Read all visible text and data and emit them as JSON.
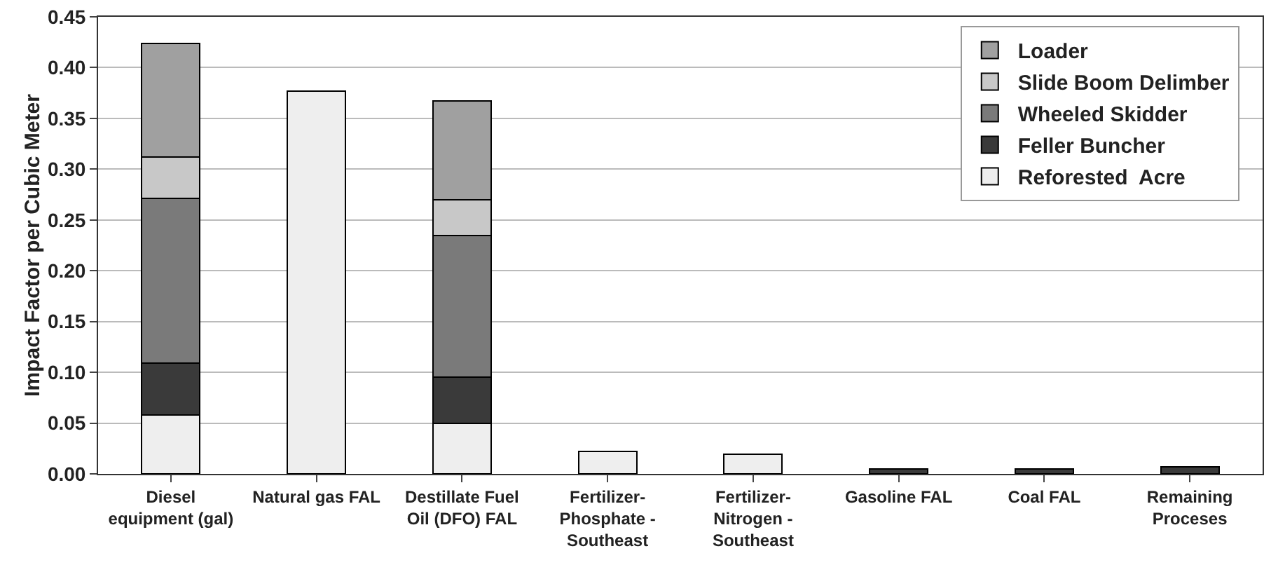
{
  "chart_data": {
    "type": "bar",
    "stacked": true,
    "ylabel": "Impact Factor per Cubic Meter",
    "categories": [
      "Diesel equipment (gal)",
      "Natural gas FAL",
      "Destillate Fuel Oil (DFO) FAL",
      "Fertilizer-Phosphate - Southeast",
      "Fertilizer-Nitrogen - Southeast",
      "Gasoline FAL",
      "Coal FAL",
      "Remaining Proceses"
    ],
    "series": [
      {
        "name": "Reforested  Acre",
        "color": "#eeeeee",
        "values": [
          0.058,
          0.377,
          0.05,
          0.022,
          0.019,
          null,
          null,
          null
        ]
      },
      {
        "name": "Feller Buncher",
        "color": "#3a3a3a",
        "values": [
          0.051,
          null,
          0.045,
          null,
          null,
          0.005,
          0.005,
          0.007
        ]
      },
      {
        "name": "Wheeled Skidder",
        "color": "#7a7a7a",
        "values": [
          0.162,
          null,
          0.14,
          null,
          null,
          null,
          null,
          null
        ]
      },
      {
        "name": "Slide Boom Delimber",
        "color": "#c8c8c8",
        "values": [
          0.041,
          null,
          0.035,
          null,
          null,
          null,
          null,
          null
        ]
      },
      {
        "name": "Loader",
        "color": "#a0a0a0",
        "values": [
          0.112,
          null,
          0.097,
          null,
          null,
          null,
          null,
          null
        ]
      }
    ],
    "ylim": [
      0,
      0.45
    ],
    "yticks": [
      {
        "value": 0,
        "label": "0.00"
      },
      0.05,
      {
        "value": 0.1,
        "label": "0.10"
      },
      0.15,
      {
        "value": 0.2,
        "label": "0.20"
      },
      0.25,
      {
        "value": 0.3,
        "label": "0.30"
      },
      0.35,
      {
        "value": 0.4,
        "label": "0.40"
      },
      0.45
    ],
    "grid": "y",
    "legend": "top right"
  }
}
